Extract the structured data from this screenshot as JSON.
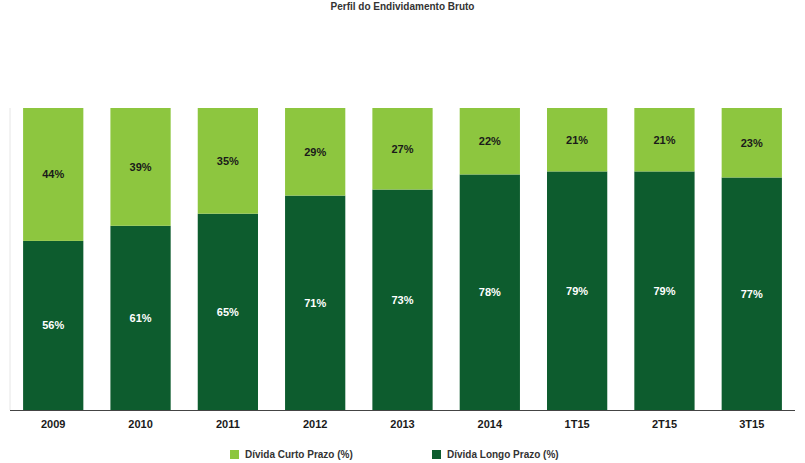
{
  "chart_data": {
    "type": "bar",
    "title": "Perfil do Endividamento Bruto",
    "stacked": true,
    "data_labels": true,
    "tick_labels": "x",
    "legend": "bottom",
    "categories": [
      "2009",
      "2010",
      "2011",
      "2012",
      "2013",
      "2014",
      "1T15",
      "2T15",
      "3T15"
    ],
    "ylim": [
      0,
      100
    ],
    "series": [
      {
        "name": "Dívida Curto Prazo (%)",
        "color": "#8dc63f",
        "values": [
          44,
          39,
          35,
          29,
          27,
          22,
          21,
          21,
          23
        ],
        "value_labels": [
          "44%",
          "39%",
          "35%",
          "29%",
          "27%",
          "22%",
          "21%",
          "21%",
          "23%"
        ]
      },
      {
        "name": "Dívida Longo Prazo (%)",
        "color": "#0d5c2e",
        "values": [
          56,
          61,
          65,
          71,
          73,
          78,
          79,
          79,
          77
        ],
        "value_labels": [
          "56%",
          "61%",
          "65%",
          "71%",
          "73%",
          "78%",
          "79%",
          "79%",
          "77%"
        ]
      }
    ]
  }
}
